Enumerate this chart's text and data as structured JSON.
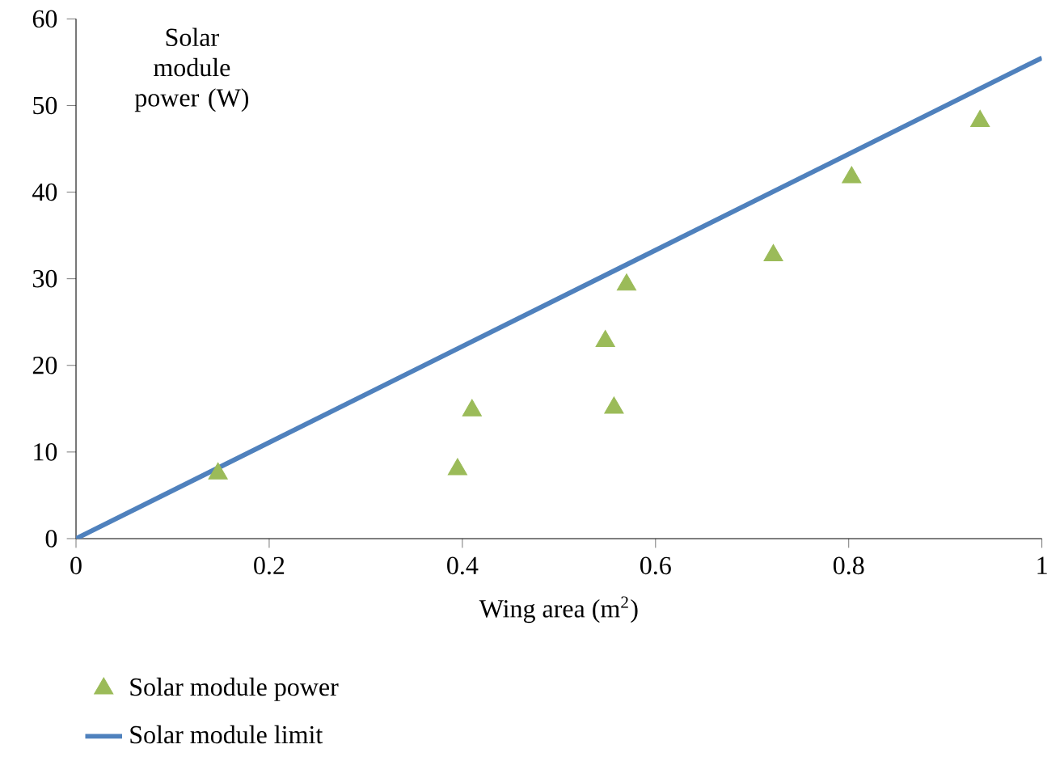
{
  "chart_data": {
    "type": "scatter",
    "xlabel": "Wing area (m$^{2}$)",
    "ylabel": "Solar module power (W)",
    "xlim": [
      0,
      1
    ],
    "xticks": [
      0,
      0.2,
      0.4,
      0.6,
      0.8,
      1
    ],
    "ylim": [
      0,
      60
    ],
    "yticks": [
      0,
      10,
      20,
      30,
      40,
      50,
      60
    ],
    "grid": false,
    "legend": "bottom",
    "series": [
      {
        "name": "Solar module power",
        "marker": "triangle",
        "color": "#9bbb59",
        "x": [
          0.147,
          0.395,
          0.41,
          0.548,
          0.557,
          0.57,
          0.722,
          0.803,
          0.936
        ],
        "values": [
          7.5,
          8.0,
          14.8,
          22.8,
          15.1,
          29.3,
          32.7,
          41.7,
          48.2
        ]
      },
      {
        "name": "Solar module limit",
        "type": "line",
        "marker": "none",
        "color": "#4f81bd",
        "x": [
          0,
          1
        ],
        "values": [
          0,
          55.5
        ]
      }
    ]
  }
}
